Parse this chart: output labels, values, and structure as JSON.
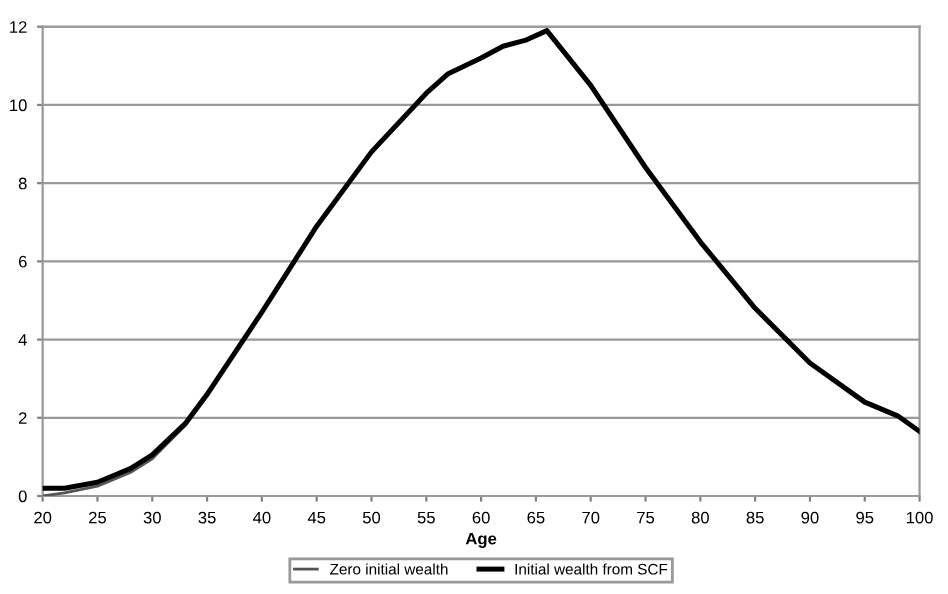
{
  "chart_data": {
    "type": "line",
    "xlabel": "Age",
    "series": [
      {
        "name": "Zero initial wealth",
        "color": "#555555",
        "x": [
          20,
          22,
          25,
          28,
          30,
          33,
          35,
          40,
          45,
          50,
          55,
          57,
          60,
          62,
          64,
          66,
          70,
          75,
          80,
          85,
          90,
          95,
          98,
          100
        ],
        "values": [
          0.0,
          0.08,
          0.25,
          0.6,
          0.95,
          1.8,
          2.55,
          4.7,
          6.9,
          8.8,
          10.3,
          10.8,
          11.2,
          11.5,
          11.65,
          11.9,
          10.5,
          8.4,
          6.5,
          4.8,
          3.4,
          2.4,
          2.05,
          1.65
        ]
      },
      {
        "name": "Initial wealth from SCF",
        "color": "#000000",
        "x": [
          20,
          22,
          25,
          28,
          30,
          33,
          35,
          40,
          45,
          50,
          55,
          57,
          60,
          62,
          64,
          66,
          70,
          75,
          80,
          85,
          90,
          95,
          98,
          100
        ],
        "values": [
          0.2,
          0.2,
          0.35,
          0.7,
          1.05,
          1.85,
          2.6,
          4.7,
          6.9,
          8.8,
          10.3,
          10.8,
          11.2,
          11.5,
          11.65,
          11.9,
          10.5,
          8.4,
          6.5,
          4.8,
          3.4,
          2.4,
          2.05,
          1.65
        ]
      }
    ],
    "xlim": [
      20,
      100
    ],
    "xticks": [
      20,
      25,
      30,
      35,
      40,
      45,
      50,
      55,
      60,
      65,
      70,
      75,
      80,
      85,
      90,
      95,
      100
    ],
    "ylim": [
      0,
      12
    ],
    "yticks": [
      0,
      2,
      4,
      6,
      8,
      10,
      12
    ],
    "grid": "y",
    "legend": "bottom",
    "marker": "none",
    "line_style": "solid"
  }
}
